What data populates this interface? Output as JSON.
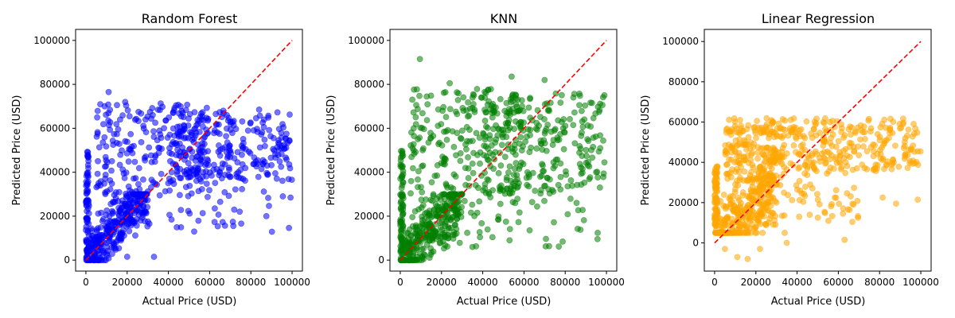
{
  "chart_data": [
    {
      "type": "scatter",
      "title": "Random Forest",
      "xlabel": "Actual Price (USD)",
      "ylabel": "Predicted Price (USD)",
      "color": "#0000ff",
      "alpha": 0.55,
      "xlim": [
        -5000,
        105000
      ],
      "ylim": [
        -5000,
        105000
      ],
      "xticks": [
        0,
        20000,
        40000,
        60000,
        80000,
        100000
      ],
      "yticks": [
        0,
        20000,
        40000,
        60000,
        80000,
        100000
      ],
      "reference_line": {
        "from": [
          0,
          0
        ],
        "to": [
          100000,
          100000
        ],
        "style": "dashed",
        "color": "#ff0000"
      },
      "clusters": [
        {
          "x": [
            0,
            1500
          ],
          "y": [
            0,
            50000
          ],
          "n": 75
        },
        {
          "x": [
            0,
            30000
          ],
          "y": [
            0,
            30000
          ],
          "n": 320,
          "follow": "diagonal",
          "spread": 6000
        },
        {
          "x": [
            5000,
            60000
          ],
          "y": [
            28000,
            72000
          ],
          "n": 230
        },
        {
          "x": [
            40000,
            100000
          ],
          "y": [
            36000,
            68000
          ],
          "n": 250
        },
        {
          "x": [
            20000,
            100000
          ],
          "y": [
            12000,
            36000
          ],
          "n": 40
        }
      ],
      "points": [
        [
          11000,
          76500
        ],
        [
          84000,
          68500
        ],
        [
          87500,
          20000
        ],
        [
          95500,
          29000
        ],
        [
          71500,
          15500
        ],
        [
          62500,
          23500
        ],
        [
          52500,
          13000
        ],
        [
          33000,
          1500
        ],
        [
          41500,
          18500
        ],
        [
          20000,
          1500
        ]
      ]
    },
    {
      "type": "scatter",
      "title": "KNN",
      "xlabel": "Actual Price (USD)",
      "ylabel": "Predicted Price (USD)",
      "color": "#008000",
      "alpha": 0.55,
      "xlim": [
        -5000,
        105000
      ],
      "ylim": [
        -5000,
        105000
      ],
      "xticks": [
        0,
        20000,
        40000,
        60000,
        80000,
        100000
      ],
      "yticks": [
        0,
        20000,
        40000,
        60000,
        80000,
        100000
      ],
      "reference_line": {
        "from": [
          0,
          0
        ],
        "to": [
          100000,
          100000
        ],
        "style": "dashed",
        "color": "#ff0000"
      },
      "clusters": [
        {
          "x": [
            0,
            1500
          ],
          "y": [
            0,
            50000
          ],
          "n": 70
        },
        {
          "x": [
            0,
            30000
          ],
          "y": [
            0,
            30000
          ],
          "n": 330,
          "follow": "diagonal",
          "spread": 7500
        },
        {
          "x": [
            5000,
            60000
          ],
          "y": [
            25000,
            78000
          ],
          "n": 230
        },
        {
          "x": [
            40000,
            100000
          ],
          "y": [
            30000,
            76000
          ],
          "n": 250
        },
        {
          "x": [
            20000,
            100000
          ],
          "y": [
            5000,
            30000
          ],
          "n": 40
        }
      ],
      "points": [
        [
          9500,
          91500
        ],
        [
          24000,
          80500
        ],
        [
          54000,
          83500
        ],
        [
          70000,
          82000
        ],
        [
          99000,
          75000
        ],
        [
          53000,
          9000
        ],
        [
          35000,
          6000
        ],
        [
          85500,
          26000
        ]
      ]
    },
    {
      "type": "scatter",
      "title": "Linear Regression",
      "xlabel": "Actual Price (USD)",
      "ylabel": "",
      "color": "#ffa500",
      "alpha": 0.55,
      "xlim": [
        -5000,
        105000
      ],
      "ylim": [
        -14000,
        106000
      ],
      "xticks": [
        0,
        20000,
        40000,
        60000,
        80000,
        100000
      ],
      "yticks": [
        0,
        20000,
        40000,
        60000,
        80000,
        100000
      ],
      "reference_line": {
        "from": [
          0,
          0
        ],
        "to": [
          100000,
          100000
        ],
        "style": "dashed",
        "color": "#ff0000"
      },
      "clusters": [
        {
          "x": [
            0,
            1500
          ],
          "y": [
            8000,
            38000
          ],
          "n": 80
        },
        {
          "x": [
            0,
            30000
          ],
          "y": [
            5000,
            45000
          ],
          "n": 320,
          "follow": "diagonal",
          "spread": 9000
        },
        {
          "x": [
            5000,
            30000
          ],
          "y": [
            30000,
            62000
          ],
          "n": 180
        },
        {
          "x": [
            30000,
            100000
          ],
          "y": [
            35000,
            62000
          ],
          "n": 270
        },
        {
          "x": [
            20000,
            70000
          ],
          "y": [
            10000,
            35000
          ],
          "n": 70
        }
      ],
      "points": [
        [
          11000,
          -7000
        ],
        [
          16000,
          -8000
        ],
        [
          22000,
          -3000
        ],
        [
          63000,
          1500
        ],
        [
          35000,
          0
        ],
        [
          34000,
          5000
        ],
        [
          5000,
          -3000
        ],
        [
          88000,
          19500
        ],
        [
          98500,
          21500
        ],
        [
          81500,
          22500
        ]
      ]
    }
  ],
  "figure_ylabel_right": "Predicted Price (USD)"
}
